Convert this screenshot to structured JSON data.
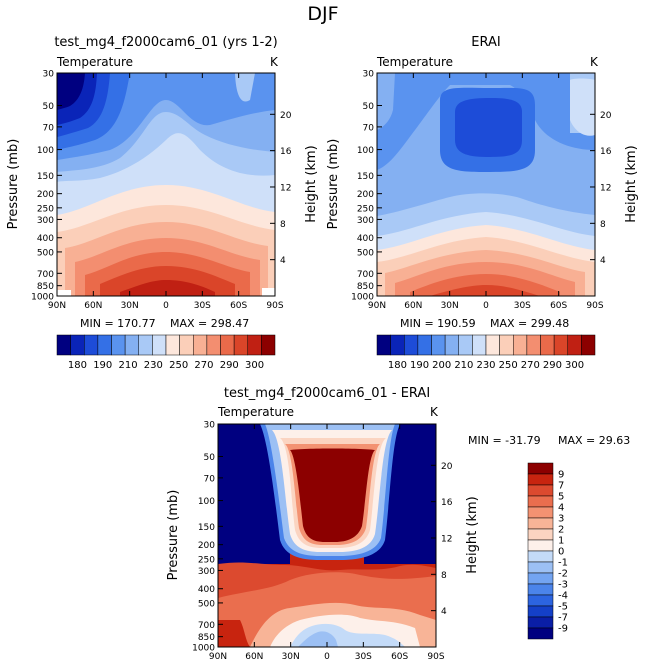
{
  "page": {
    "title": "DJF"
  },
  "colors": {
    "palette": [
      "#000080",
      "#0a24b8",
      "#1d4cd8",
      "#3470e6",
      "#5a93ef",
      "#84b0f2",
      "#a9c9f6",
      "#cfe0f9",
      "#fde7dc",
      "#fbcfb9",
      "#f8b094",
      "#f38e70",
      "#ea6a4a",
      "#da4529",
      "#c02013",
      "#8c0000"
    ],
    "diff_palette": [
      "#000080",
      "#0a1ea6",
      "#1440c8",
      "#2c64e0",
      "#4b84ea",
      "#73a4f1",
      "#9cc0f4",
      "#c4dbf8",
      "#fdf0ea",
      "#fbd4c1",
      "#f8b497",
      "#f39272",
      "#ea6e4e",
      "#dc4a2f",
      "#c8240f",
      "#8c0000"
    ]
  },
  "chart_data": [
    {
      "type": "contour",
      "id": "model",
      "title": "test_mg4_f2000cam6_01 (yrs 1-2)",
      "subtitle_left": "Temperature",
      "subtitle_right": "K",
      "ylabel": "Pressure (mb)",
      "ylabel_right": "Height (km)",
      "x_ticks": [
        "90N",
        "60N",
        "30N",
        "0",
        "30S",
        "60S",
        "90S"
      ],
      "y_ticks": [
        30,
        50,
        70,
        100,
        150,
        200,
        250,
        300,
        400,
        500,
        700,
        850,
        1000
      ],
      "height_ticks": [
        4,
        8,
        12,
        16,
        20
      ],
      "ylim": [
        30,
        1000
      ],
      "min_text": "MIN = 170.77",
      "max_text": "MAX = 298.47",
      "colorbar": {
        "levels": [
          180,
          185,
          190,
          200,
          210,
          220,
          230,
          240,
          250,
          260,
          270,
          280,
          290,
          300,
          310
        ],
        "labels": [
          "180",
          "190",
          "210",
          "230",
          "250",
          "270",
          "290",
          "300"
        ]
      }
    },
    {
      "type": "contour",
      "id": "obs",
      "title": "ERAI",
      "subtitle_left": "Temperature",
      "subtitle_right": "K",
      "ylabel": "Pressure (mb)",
      "ylabel_right": "Height (km)",
      "x_ticks": [
        "90N",
        "60N",
        "30N",
        "0",
        "30S",
        "60S",
        "90S"
      ],
      "y_ticks": [
        30,
        50,
        70,
        100,
        150,
        200,
        250,
        300,
        400,
        500,
        700,
        850,
        1000
      ],
      "height_ticks": [
        4,
        8,
        12,
        16,
        20
      ],
      "ylim": [
        30,
        1000
      ],
      "min_text": "MIN = 190.59",
      "max_text": "MAX = 299.48",
      "colorbar": {
        "labels": [
          "180",
          "190",
          "200",
          "210",
          "230",
          "250",
          "270",
          "290",
          "300"
        ]
      }
    },
    {
      "type": "contour",
      "id": "diff",
      "title": "test_mg4_f2000cam6_01 - ERAI",
      "subtitle_left": "Temperature",
      "subtitle_right": "K",
      "ylabel": "Pressure (mb)",
      "ylabel_right": "Height (km)",
      "x_ticks": [
        "90N",
        "60N",
        "30N",
        "0",
        "30S",
        "60S",
        "90S"
      ],
      "y_ticks": [
        30,
        50,
        70,
        100,
        150,
        200,
        250,
        300,
        400,
        500,
        700,
        850,
        1000
      ],
      "height_ticks": [
        4,
        8,
        12,
        16,
        20
      ],
      "ylim": [
        30,
        1000
      ],
      "min_text": "MIN = -31.79",
      "max_text": "MAX =  29.63",
      "colorbar": {
        "labels": [
          "9",
          "7",
          "5",
          "4",
          "3",
          "2",
          "1",
          "0",
          "-1",
          "-2",
          "-3",
          "-4",
          "-5",
          "-7",
          "-9"
        ]
      }
    }
  ]
}
